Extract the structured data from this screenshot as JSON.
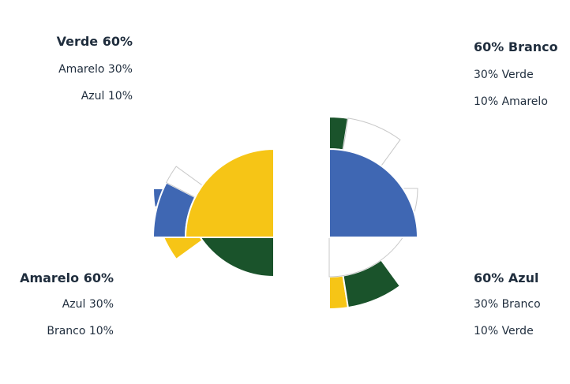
{
  "colors": {
    "Verde": "#1a532b",
    "Amarelo": "#f6c516",
    "Azul": "#3f67b3",
    "Branco": "#ffffff",
    "text": "#1f2d3d",
    "outline": "#c8c8c8"
  },
  "chart_data": {
    "type": "pie",
    "charts": [
      {
        "position": "top-left",
        "labels": {
          "main": "Verde 60%",
          "second": "Amarelo 30%",
          "third": "Azul 10%"
        },
        "inner": {
          "name": "Verde",
          "percent": 60
        },
        "outer": [
          {
            "name": "Azul",
            "percent": 10
          },
          {
            "name": "Amarelo",
            "percent": 30
          }
        ]
      },
      {
        "position": "top-right",
        "labels": {
          "main": "60% Branco",
          "second": "30% Verde",
          "third": "10% Amarelo"
        },
        "inner": {
          "name": "Branco",
          "percent": 60
        },
        "outer": [
          {
            "name": "Amarelo",
            "percent": 10
          },
          {
            "name": "Verde",
            "percent": 30
          }
        ]
      },
      {
        "position": "bottom-left",
        "labels": {
          "main": "Amarelo 60%",
          "second": "Azul 30%",
          "third": "Branco 10%"
        },
        "inner": {
          "name": "Amarelo",
          "percent": 60
        },
        "outer": [
          {
            "name": "Azul",
            "percent": 30
          },
          {
            "name": "Branco",
            "percent": 10
          }
        ]
      },
      {
        "position": "bottom-right",
        "labels": {
          "main": "60% Azul",
          "second": "30% Branco",
          "third": "10% Verde"
        },
        "inner": {
          "name": "Azul",
          "percent": 60
        },
        "outer": [
          {
            "name": "Verde",
            "percent": 10
          },
          {
            "name": "Branco",
            "percent": 30
          }
        ]
      }
    ]
  }
}
